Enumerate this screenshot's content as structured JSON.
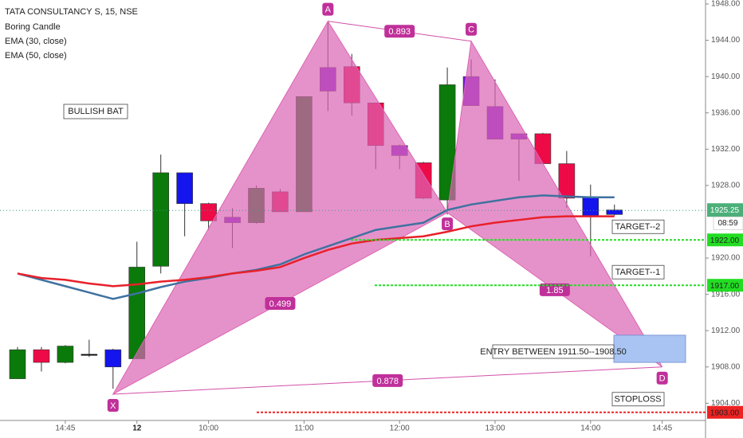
{
  "chart_data": {
    "type": "candlestick",
    "title": "TATA CONSULTANCY S, 15, NSE",
    "categories": [
      null,
      null,
      "14:45",
      null,
      null,
      "12",
      null,
      null,
      "10:00",
      null,
      null,
      null,
      "11:00",
      null,
      null,
      null,
      "12:00",
      null,
      null,
      null,
      "13:00",
      null,
      null,
      null,
      "14:00",
      null,
      null,
      "14:45"
    ],
    "series": [
      {
        "name": "Boring Candle",
        "type": "candlestick",
        "open": [
          1906.7,
          1909.9,
          1908.5,
          1909.4,
          1909.9,
          1908.9,
          1919.1,
          1929.4,
          1926.0,
          1923.9,
          1923.9,
          1927.3,
          1925.1,
          1938.4,
          1941.1,
          1937.1,
          1932.4,
          1930.5,
          1926.4,
          1936.8,
          1936.7,
          1933.7,
          1933.7,
          1930.4,
          1926.7,
          1925.3,
          null,
          null
        ],
        "high": [
          1910.2,
          1910.2,
          1910.4,
          1911.0,
          1910.0,
          1921.8,
          1931.4,
          1929.4,
          1926.1,
          1925.5,
          1928.0,
          1927.6,
          1937.8,
          1946.0,
          1942.5,
          1937.1,
          1932.5,
          1930.6,
          1941.0,
          1941.9,
          1939.7,
          1933.7,
          1933.8,
          1931.8,
          1928.1,
          1925.9,
          null,
          null
        ],
        "low": [
          1906.7,
          1907.5,
          1908.4,
          1909.1,
          1905.6,
          1908.9,
          1918.3,
          1922.4,
          1923.1,
          1921.1,
          1923.8,
          1925.1,
          1925.1,
          1936.2,
          1935.7,
          1929.8,
          1929.8,
          1926.5,
          1924.8,
          1936.8,
          1933.1,
          1928.5,
          1930.4,
          1925.5,
          1920.2,
          1924.7,
          null,
          null
        ],
        "close": [
          1909.9,
          1908.5,
          1910.3,
          1909.4,
          1908.0,
          1919.0,
          1929.4,
          1926.0,
          1924.1,
          1924.5,
          1927.7,
          1925.1,
          1937.8,
          1941.0,
          1937.1,
          1932.4,
          1931.3,
          1926.6,
          1939.1,
          1940.0,
          1933.1,
          1933.1,
          1930.4,
          1926.6,
          1924.6,
          1924.8,
          null,
          null
        ],
        "colors": [
          "#0a7a0a",
          "#ee0a46",
          "#0a7a0a",
          "#000000",
          "#1414ee",
          "#0a7a0a",
          "#0a7a0a",
          "#1414ee",
          "#ee0a46",
          "#7a1ad8",
          "#0a7a0a",
          "#ee0a46",
          "#0a7a0a",
          "#7a1ad8",
          "#ee0a46",
          "#ee0a46",
          "#7a1ad8",
          "#ee0a46",
          "#0a7a0a",
          "#7a1ad8",
          "#7a1ad8",
          "#7a1ad8",
          "#ee0a46",
          "#ee0a46",
          "#1414ee",
          "#1414ee",
          null,
          null
        ]
      },
      {
        "name": "EMA (30, close)",
        "type": "line",
        "color": "#3f72a0",
        "values": [
          1918.3,
          1917.6,
          1916.9,
          1916.2,
          1915.5,
          1916.1,
          1916.8,
          1917.4,
          1917.8,
          1918.3,
          1918.7,
          1919.3,
          1920.4,
          1921.3,
          1922.2,
          1923.1,
          1923.5,
          1923.9,
          1925.3,
          1925.9,
          1926.3,
          1926.7,
          1926.9,
          1926.8,
          1926.7,
          1926.7,
          null,
          null
        ]
      },
      {
        "name": "EMA (50, close)",
        "type": "line",
        "color": "#e8202a",
        "values": [
          1918.3,
          1917.8,
          1917.6,
          1917.2,
          1916.9,
          1917.1,
          1917.4,
          1917.6,
          1917.9,
          1918.3,
          1918.6,
          1919.0,
          1920.0,
          1920.9,
          1921.6,
          1922.0,
          1922.2,
          1922.4,
          1922.9,
          1923.5,
          1923.9,
          1924.2,
          1924.5,
          1924.6,
          1924.6,
          1924.6,
          null,
          null
        ]
      }
    ],
    "ylim": [
      1902.1,
      1948.44
    ],
    "yticks": [
      {
        "value": 1904,
        "label": "1904.00"
      },
      {
        "value": 1908,
        "label": "1908.00"
      },
      {
        "value": 1912,
        "label": "1912.00"
      },
      {
        "value": 1916,
        "label": "1916.00"
      },
      {
        "value": 1920,
        "label": "1920.00"
      },
      {
        "value": 1928,
        "label": "1928.00"
      },
      {
        "value": 1932,
        "label": "1932.00"
      },
      {
        "value": 1936,
        "label": "1936.00"
      },
      {
        "value": 1940,
        "label": "1940.00"
      },
      {
        "value": 1944,
        "label": "1944.00"
      },
      {
        "value": 1948,
        "label": "1948.00"
      }
    ],
    "grid": false,
    "pattern_name": "BULLISH BAT",
    "pattern": {
      "color": "#dc64b4",
      "labels": [
        null,
        null,
        null,
        null,
        "X",
        null,
        null,
        null,
        null,
        null,
        null,
        null,
        null,
        "A",
        null,
        null,
        null,
        null,
        "B",
        "C",
        null,
        null,
        null,
        null,
        null,
        null,
        null,
        "D"
      ],
      "values": [
        null,
        null,
        null,
        null,
        1905.0,
        null,
        null,
        null,
        null,
        null,
        null,
        null,
        null,
        1946.1,
        null,
        null,
        null,
        null,
        1925.0,
        1943.9,
        null,
        null,
        null,
        null,
        null,
        null,
        null,
        1908.0
      ],
      "ratios": {
        "XB": 0.499,
        "AC": 0.893,
        "BD": 1.85,
        "XD": 0.878
      }
    },
    "levels": [
      {
        "name": "TARGET--2",
        "price": {
          "value": 1922,
          "label": "1922.00"
        },
        "color": "#22dd22"
      },
      {
        "name": "TARGET--1",
        "price": {
          "value": 1917,
          "label": "1917.00"
        },
        "color": "#22dd22"
      },
      {
        "name": "STOPLOSS",
        "price": {
          "value": 1903,
          "label": "1903.00"
        },
        "color": "#ee2222"
      }
    ],
    "entry": {
      "label": "ENTRY BETWEEN 1911.50--1908.50",
      "high": 1911.5,
      "low": 1908.5,
      "color": "#a9c4f2"
    },
    "last_price": 1925.25,
    "last_price_color": "#4caf7a",
    "countdown": "08:59"
  }
}
